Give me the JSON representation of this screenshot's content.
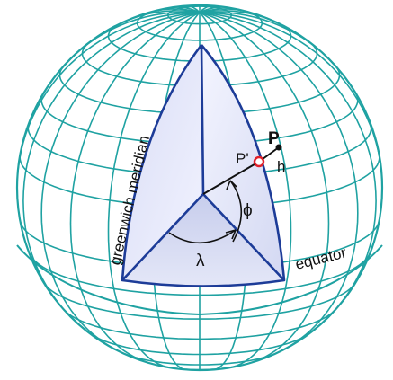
{
  "labels": {
    "greenwich": "greenwich meridian",
    "equator": "equator",
    "point": "P",
    "projected_point": "P'",
    "height": "h",
    "latitude": "ϕ",
    "longitude": "λ"
  },
  "colors": {
    "background": "#ffffff",
    "grid": "#1fa2a2",
    "frame": "#1d3c98",
    "wedge_light": "#eef0ff",
    "wedge_mid": "#d6daf3",
    "wedge_dark": "#c3c9ea",
    "marker": "#e0202a",
    "text": "#111111"
  }
}
